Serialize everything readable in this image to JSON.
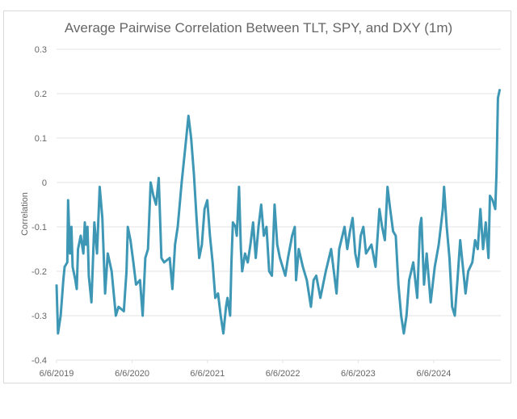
{
  "chart_data": {
    "type": "line",
    "title": "Average Pairwise Correlation Between TLT, SPY, and DXY (1m)",
    "xlabel": "",
    "ylabel": "Correlation",
    "ylim": [
      -0.4,
      0.3
    ],
    "yticks": [
      "0.3",
      "0.2",
      "0.1",
      "0",
      "-0.1",
      "-0.2",
      "-0.3",
      "-0.4"
    ],
    "xlim": [
      "2019-06-06",
      "2025-04-27"
    ],
    "xticks": [
      {
        "date": "2019-06-06",
        "label": "6/6/2019"
      },
      {
        "date": "2020-06-06",
        "label": "6/6/2020"
      },
      {
        "date": "2021-06-06",
        "label": "6/6/2021"
      },
      {
        "date": "2022-06-06",
        "label": "6/6/2022"
      },
      {
        "date": "2023-06-06",
        "label": "6/6/2023"
      },
      {
        "date": "2024-06-06",
        "label": "6/6/2024"
      }
    ],
    "grid": "horizontal",
    "legend": "none",
    "line_color": "#3d97b5",
    "series": [
      {
        "x": [
          "2019-06-06",
          "2019-06-13",
          "2019-06-26",
          "2019-07-09",
          "2019-07-15",
          "2019-07-28",
          "2019-08-01",
          "2019-08-10",
          "2019-08-17",
          "2019-08-23",
          "2019-09-05",
          "2019-09-12",
          "2019-09-18",
          "2019-10-01",
          "2019-10-14",
          "2019-10-21",
          "2019-10-27",
          "2019-11-03",
          "2019-11-09",
          "2019-11-22",
          "2019-12-06",
          "2019-12-19",
          "2020-01-01",
          "2020-01-14",
          "2020-01-27",
          "2020-02-09",
          "2020-02-28",
          "2020-03-19",
          "2020-04-01",
          "2020-04-27",
          "2020-05-10",
          "2020-05-16",
          "2020-05-29",
          "2020-06-12",
          "2020-06-25",
          "2020-07-14",
          "2020-07-27",
          "2020-08-09",
          "2020-08-22",
          "2020-09-04",
          "2020-09-17",
          "2020-09-30",
          "2020-10-13",
          "2020-10-26",
          "2020-11-08",
          "2020-12-05",
          "2020-12-18",
          "2020-12-31",
          "2021-01-13",
          "2021-02-01",
          "2021-02-21",
          "2021-03-06",
          "2021-03-19",
          "2021-04-01",
          "2021-04-14",
          "2021-04-27",
          "2021-05-10",
          "2021-05-23",
          "2021-06-05",
          "2021-06-18",
          "2021-07-01",
          "2021-07-14",
          "2021-07-27",
          "2021-08-09",
          "2021-08-22",
          "2021-09-04",
          "2021-09-11",
          "2021-09-24",
          "2021-09-30",
          "2021-10-07",
          "2021-10-20",
          "2021-10-26",
          "2021-11-06",
          "2021-11-15",
          "2021-11-21",
          "2021-12-05",
          "2021-12-18",
          "2021-12-31",
          "2022-01-13",
          "2022-01-26",
          "2022-02-08",
          "2022-02-21",
          "2022-03-06",
          "2022-03-19",
          "2022-04-01",
          "2022-04-14",
          "2022-04-27",
          "2022-05-10",
          "2022-05-23",
          "2022-06-18",
          "2022-07-01",
          "2022-07-21",
          "2022-08-03",
          "2022-08-09",
          "2022-08-22",
          "2022-09-11",
          "2022-09-30",
          "2022-10-20",
          "2022-11-02",
          "2022-11-15",
          "2022-12-05",
          "2022-12-31",
          "2023-01-26",
          "2023-02-21",
          "2023-03-06",
          "2023-04-01",
          "2023-04-14",
          "2023-04-27",
          "2023-05-10",
          "2023-05-23",
          "2023-06-05",
          "2023-06-18",
          "2023-07-01",
          "2023-07-14",
          "2023-08-09",
          "2023-08-29",
          "2023-09-17",
          "2023-09-30",
          "2023-10-13",
          "2023-10-26",
          "2023-11-08",
          "2023-11-22",
          "2023-12-05",
          "2023-12-18",
          "2023-12-31",
          "2024-01-13",
          "2024-01-26",
          "2024-02-08",
          "2024-02-28",
          "2024-03-18",
          "2024-03-31",
          "2024-04-07",
          "2024-04-20",
          "2024-05-03",
          "2024-05-22",
          "2024-06-11",
          "2024-06-30",
          "2024-07-20",
          "2024-07-26",
          "2024-08-08",
          "2024-08-21",
          "2024-09-03",
          "2024-09-16",
          "2024-09-29",
          "2024-10-12",
          "2024-10-25",
          "2024-11-07",
          "2024-11-20",
          "2024-12-10",
          "2024-12-23",
          "2025-01-05",
          "2025-01-18",
          "2025-01-31",
          "2025-02-13",
          "2025-02-26",
          "2025-03-05",
          "2025-03-18",
          "2025-03-31",
          "2025-04-06",
          "2025-04-13",
          "2025-04-22"
        ],
        "y": [
          -0.23,
          -0.34,
          -0.3,
          -0.22,
          -0.19,
          -0.18,
          -0.04,
          -0.16,
          -0.1,
          -0.19,
          -0.22,
          -0.24,
          -0.15,
          -0.12,
          -0.16,
          -0.09,
          -0.14,
          -0.1,
          -0.21,
          -0.27,
          -0.09,
          -0.16,
          -0.01,
          -0.08,
          -0.25,
          -0.16,
          -0.2,
          -0.3,
          -0.28,
          -0.29,
          -0.2,
          -0.1,
          -0.13,
          -0.18,
          -0.23,
          -0.22,
          -0.3,
          -0.17,
          -0.15,
          0.0,
          -0.03,
          -0.05,
          0.01,
          -0.17,
          -0.18,
          -0.17,
          -0.24,
          -0.14,
          -0.1,
          0.0,
          0.09,
          0.15,
          0.1,
          0.02,
          -0.08,
          -0.17,
          -0.14,
          -0.06,
          -0.04,
          -0.12,
          -0.18,
          -0.26,
          -0.25,
          -0.3,
          -0.34,
          -0.28,
          -0.26,
          -0.3,
          -0.18,
          -0.09,
          -0.1,
          -0.12,
          -0.01,
          -0.15,
          -0.2,
          -0.16,
          -0.18,
          -0.14,
          -0.09,
          -0.17,
          -0.1,
          -0.05,
          -0.12,
          -0.1,
          -0.2,
          -0.21,
          -0.05,
          -0.14,
          -0.17,
          -0.21,
          -0.17,
          -0.12,
          -0.1,
          -0.22,
          -0.15,
          -0.19,
          -0.22,
          -0.28,
          -0.22,
          -0.21,
          -0.26,
          -0.2,
          -0.15,
          -0.25,
          -0.15,
          -0.1,
          -0.15,
          -0.11,
          -0.08,
          -0.16,
          -0.19,
          -0.12,
          -0.1,
          -0.16,
          -0.14,
          -0.19,
          -0.06,
          -0.1,
          -0.13,
          -0.01,
          -0.06,
          -0.11,
          -0.12,
          -0.23,
          -0.3,
          -0.34,
          -0.3,
          -0.22,
          -0.18,
          -0.26,
          -0.1,
          -0.08,
          -0.23,
          -0.16,
          -0.27,
          -0.19,
          -0.14,
          -0.06,
          -0.01,
          -0.1,
          -0.17,
          -0.28,
          -0.3,
          -0.22,
          -0.13,
          -0.19,
          -0.25,
          -0.2,
          -0.18,
          -0.13,
          -0.15,
          -0.06,
          -0.15,
          -0.09,
          -0.17,
          -0.03,
          -0.04,
          -0.06,
          0.02,
          0.19,
          0.21
        ]
      }
    ]
  }
}
